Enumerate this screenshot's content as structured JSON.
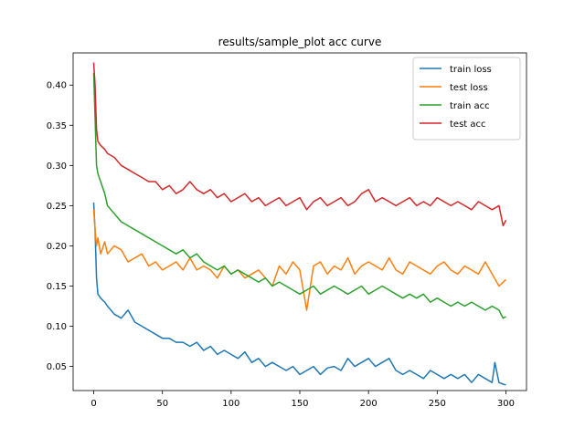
{
  "chart_data": {
    "type": "line",
    "title": "results/sample_plot acc curve",
    "xlabel": "",
    "ylabel": "",
    "xlim": [
      -15,
      315
    ],
    "ylim": [
      0.02,
      0.44
    ],
    "xticks": [
      0,
      50,
      100,
      150,
      200,
      250,
      300
    ],
    "yticks": [
      0.05,
      0.1,
      0.15,
      0.2,
      0.25,
      0.3,
      0.35,
      0.4
    ],
    "ytick_labels": [
      "0.05",
      "0.10",
      "0.15",
      "0.20",
      "0.25",
      "0.30",
      "0.35",
      "0.40"
    ],
    "grid": false,
    "legend": "top-right",
    "colors": {
      "train loss": "#1f77b4",
      "test loss": "#ff7f0e",
      "train acc": "#2ca02c",
      "test acc": "#d62728"
    },
    "series": [
      {
        "name": "train loss",
        "color": "#1f77b4",
        "x": [
          0,
          1,
          2,
          3,
          5,
          8,
          10,
          15,
          20,
          25,
          30,
          35,
          40,
          45,
          50,
          55,
          60,
          65,
          70,
          75,
          80,
          85,
          90,
          95,
          100,
          105,
          110,
          115,
          120,
          125,
          130,
          135,
          140,
          145,
          150,
          155,
          160,
          165,
          170,
          175,
          180,
          185,
          190,
          195,
          200,
          205,
          210,
          215,
          220,
          225,
          230,
          235,
          240,
          245,
          250,
          255,
          260,
          265,
          270,
          275,
          280,
          285,
          290,
          292,
          295,
          298,
          300
        ],
        "y": [
          0.254,
          0.22,
          0.16,
          0.14,
          0.135,
          0.13,
          0.125,
          0.115,
          0.11,
          0.12,
          0.105,
          0.1,
          0.095,
          0.09,
          0.085,
          0.085,
          0.08,
          0.08,
          0.075,
          0.08,
          0.07,
          0.075,
          0.065,
          0.07,
          0.065,
          0.06,
          0.068,
          0.055,
          0.06,
          0.05,
          0.055,
          0.05,
          0.045,
          0.05,
          0.04,
          0.045,
          0.05,
          0.04,
          0.048,
          0.05,
          0.045,
          0.06,
          0.05,
          0.055,
          0.06,
          0.05,
          0.055,
          0.06,
          0.045,
          0.04,
          0.045,
          0.04,
          0.035,
          0.045,
          0.04,
          0.035,
          0.04,
          0.035,
          0.04,
          0.03,
          0.04,
          0.035,
          0.03,
          0.055,
          0.03,
          0.028,
          0.027
        ]
      },
      {
        "name": "test loss",
        "color": "#ff7f0e",
        "x": [
          0,
          1,
          2,
          3,
          5,
          8,
          10,
          15,
          20,
          25,
          30,
          35,
          40,
          45,
          50,
          55,
          60,
          65,
          70,
          75,
          80,
          85,
          90,
          95,
          100,
          105,
          110,
          115,
          120,
          125,
          130,
          135,
          140,
          145,
          150,
          155,
          160,
          165,
          170,
          175,
          180,
          185,
          190,
          195,
          200,
          205,
          210,
          215,
          220,
          225,
          230,
          235,
          240,
          245,
          250,
          255,
          260,
          265,
          270,
          275,
          280,
          285,
          290,
          295,
          300
        ],
        "y": [
          0.245,
          0.22,
          0.2,
          0.21,
          0.19,
          0.205,
          0.19,
          0.2,
          0.195,
          0.18,
          0.185,
          0.19,
          0.175,
          0.18,
          0.17,
          0.175,
          0.18,
          0.17,
          0.185,
          0.17,
          0.175,
          0.17,
          0.16,
          0.175,
          0.165,
          0.17,
          0.16,
          0.165,
          0.17,
          0.16,
          0.15,
          0.175,
          0.165,
          0.18,
          0.17,
          0.12,
          0.175,
          0.18,
          0.165,
          0.175,
          0.17,
          0.185,
          0.165,
          0.175,
          0.18,
          0.175,
          0.17,
          0.185,
          0.17,
          0.165,
          0.18,
          0.175,
          0.17,
          0.165,
          0.175,
          0.18,
          0.17,
          0.165,
          0.175,
          0.17,
          0.165,
          0.18,
          0.165,
          0.15,
          0.158
        ]
      },
      {
        "name": "train acc",
        "color": "#2ca02c",
        "x": [
          0,
          1,
          2,
          3,
          5,
          8,
          10,
          15,
          20,
          25,
          30,
          35,
          40,
          45,
          50,
          55,
          60,
          65,
          70,
          75,
          80,
          85,
          90,
          95,
          100,
          105,
          110,
          115,
          120,
          125,
          130,
          135,
          140,
          145,
          150,
          155,
          160,
          165,
          170,
          175,
          180,
          185,
          190,
          195,
          200,
          205,
          210,
          215,
          220,
          225,
          230,
          235,
          240,
          245,
          250,
          255,
          260,
          265,
          270,
          275,
          280,
          285,
          290,
          295,
          298,
          300
        ],
        "y": [
          0.415,
          0.36,
          0.3,
          0.29,
          0.28,
          0.265,
          0.25,
          0.24,
          0.23,
          0.225,
          0.22,
          0.215,
          0.21,
          0.205,
          0.2,
          0.195,
          0.19,
          0.195,
          0.185,
          0.19,
          0.18,
          0.175,
          0.17,
          0.175,
          0.165,
          0.17,
          0.165,
          0.16,
          0.155,
          0.16,
          0.15,
          0.155,
          0.15,
          0.145,
          0.14,
          0.145,
          0.15,
          0.14,
          0.145,
          0.15,
          0.145,
          0.14,
          0.145,
          0.15,
          0.14,
          0.145,
          0.15,
          0.145,
          0.14,
          0.135,
          0.14,
          0.135,
          0.14,
          0.13,
          0.135,
          0.13,
          0.125,
          0.13,
          0.125,
          0.13,
          0.125,
          0.12,
          0.125,
          0.12,
          0.11,
          0.112
        ]
      },
      {
        "name": "test acc",
        "color": "#d62728",
        "x": [
          0,
          1,
          2,
          3,
          5,
          8,
          10,
          15,
          20,
          25,
          30,
          35,
          40,
          45,
          50,
          55,
          60,
          65,
          70,
          75,
          80,
          85,
          90,
          95,
          100,
          105,
          110,
          115,
          120,
          125,
          130,
          135,
          140,
          145,
          150,
          155,
          160,
          165,
          170,
          175,
          180,
          185,
          190,
          195,
          200,
          205,
          210,
          215,
          220,
          225,
          230,
          235,
          240,
          245,
          250,
          255,
          260,
          265,
          270,
          275,
          280,
          285,
          290,
          295,
          298,
          300
        ],
        "y": [
          0.428,
          0.4,
          0.345,
          0.33,
          0.325,
          0.32,
          0.315,
          0.31,
          0.3,
          0.295,
          0.29,
          0.285,
          0.28,
          0.28,
          0.27,
          0.275,
          0.265,
          0.27,
          0.28,
          0.27,
          0.265,
          0.27,
          0.26,
          0.265,
          0.255,
          0.26,
          0.265,
          0.255,
          0.26,
          0.25,
          0.255,
          0.26,
          0.25,
          0.255,
          0.26,
          0.245,
          0.255,
          0.26,
          0.25,
          0.255,
          0.26,
          0.25,
          0.255,
          0.265,
          0.27,
          0.255,
          0.26,
          0.255,
          0.25,
          0.255,
          0.26,
          0.25,
          0.255,
          0.25,
          0.26,
          0.255,
          0.25,
          0.255,
          0.25,
          0.245,
          0.255,
          0.25,
          0.245,
          0.25,
          0.225,
          0.232
        ]
      }
    ]
  }
}
